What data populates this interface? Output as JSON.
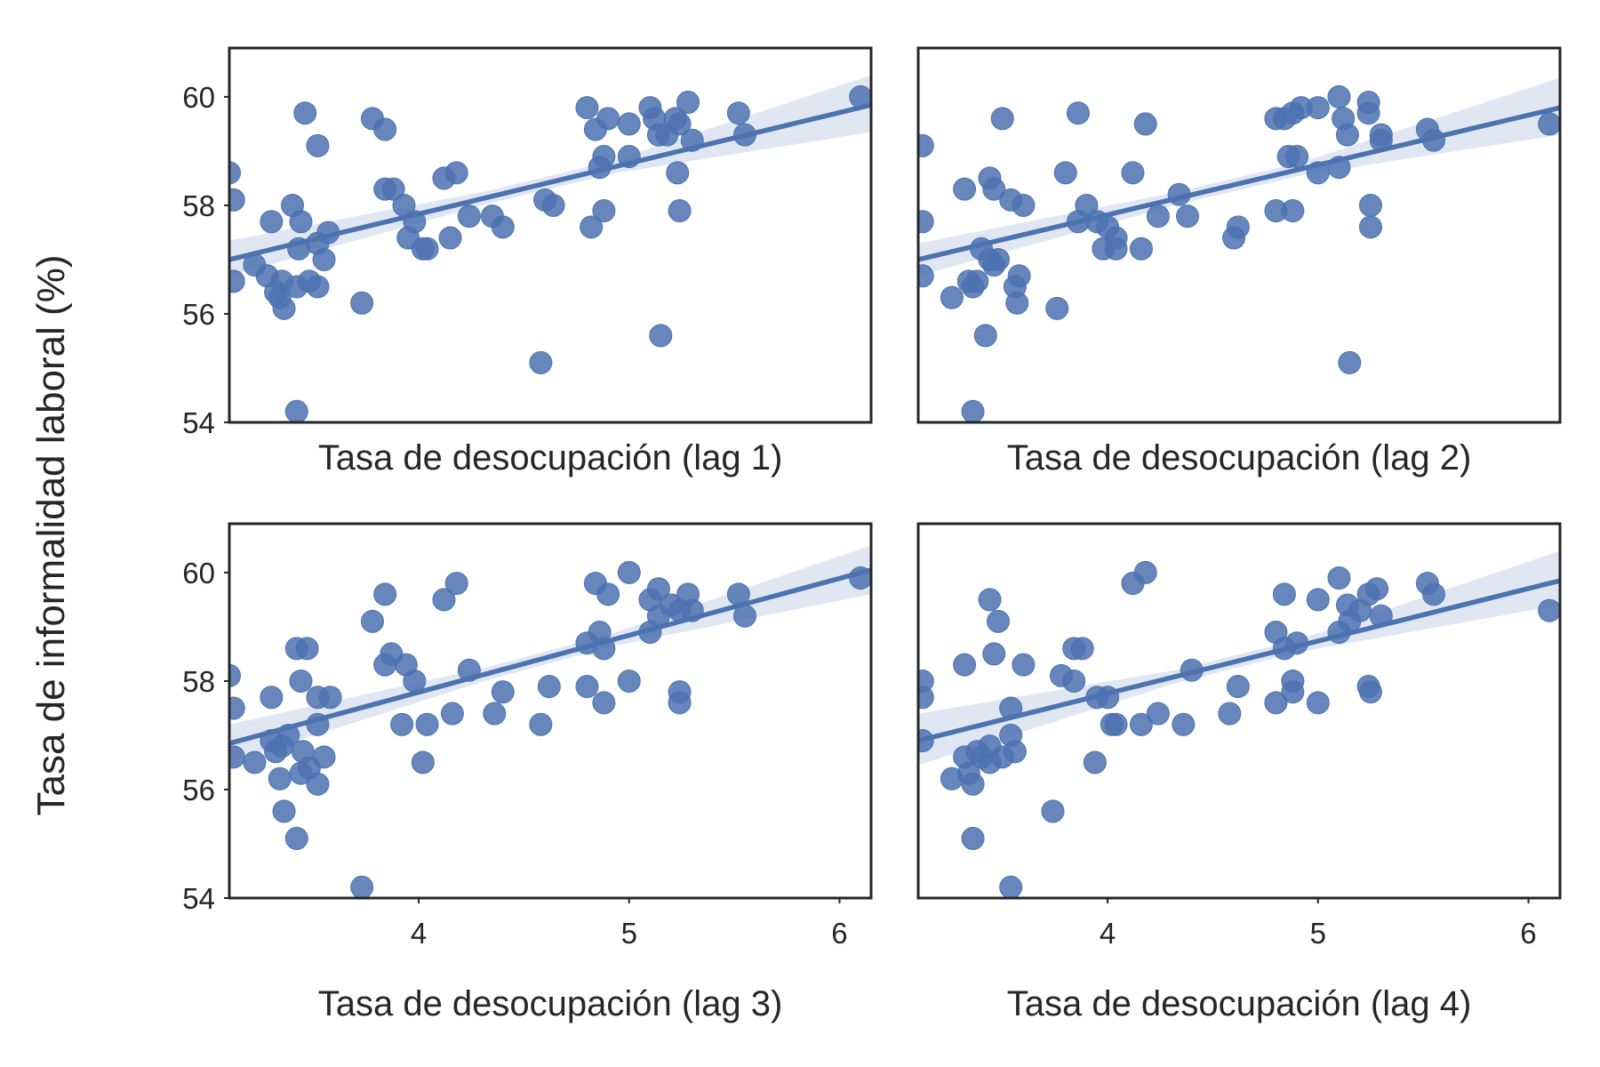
{
  "chart_data": {
    "type": "scatter",
    "ylabel": "Tasa de informalidad laboral (%)",
    "xlim": [
      3.1,
      6.15
    ],
    "ylim": [
      54,
      60.9
    ],
    "xticks": [
      "4",
      "5",
      "6"
    ],
    "yticks": [
      "54",
      "56",
      "58",
      "60"
    ],
    "grid": false,
    "color": "#4c72b0",
    "ci_color": "#dce3f0",
    "panels": [
      {
        "xlabel": "Tasa de desocupación (lag 1)",
        "regression": {
          "x": [
            3.1,
            6.15
          ],
          "y": [
            57.0,
            59.85
          ],
          "ci_lower_end": [
            56.7,
            59.35
          ],
          "ci_upper_end": [
            57.35,
            60.4
          ]
        },
        "points": [
          [
            3.1,
            58.6
          ],
          [
            3.12,
            58.1
          ],
          [
            3.12,
            56.6
          ],
          [
            3.22,
            56.9
          ],
          [
            3.28,
            56.7
          ],
          [
            3.3,
            57.7
          ],
          [
            3.32,
            56.4
          ],
          [
            3.34,
            56.3
          ],
          [
            3.35,
            56.6
          ],
          [
            3.36,
            56.1
          ],
          [
            3.4,
            58.0
          ],
          [
            3.42,
            54.2
          ],
          [
            3.42,
            56.5
          ],
          [
            3.43,
            57.2
          ],
          [
            3.44,
            57.7
          ],
          [
            3.46,
            59.7
          ],
          [
            3.48,
            56.6
          ],
          [
            3.52,
            59.1
          ],
          [
            3.52,
            56.5
          ],
          [
            3.52,
            57.3
          ],
          [
            3.55,
            57.0
          ],
          [
            3.57,
            57.5
          ],
          [
            3.73,
            56.2
          ],
          [
            3.78,
            59.6
          ],
          [
            3.84,
            59.4
          ],
          [
            3.84,
            58.3
          ],
          [
            3.88,
            58.3
          ],
          [
            3.93,
            58.0
          ],
          [
            3.95,
            57.4
          ],
          [
            3.98,
            57.7
          ],
          [
            4.02,
            57.2
          ],
          [
            4.04,
            57.2
          ],
          [
            4.12,
            58.5
          ],
          [
            4.15,
            57.4
          ],
          [
            4.18,
            58.6
          ],
          [
            4.24,
            57.8
          ],
          [
            4.35,
            57.8
          ],
          [
            4.4,
            57.6
          ],
          [
            4.58,
            55.1
          ],
          [
            4.6,
            58.1
          ],
          [
            4.64,
            58.0
          ],
          [
            4.8,
            59.8
          ],
          [
            4.82,
            57.6
          ],
          [
            4.84,
            59.4
          ],
          [
            4.86,
            58.7
          ],
          [
            4.88,
            57.9
          ],
          [
            4.88,
            58.9
          ],
          [
            4.9,
            59.6
          ],
          [
            5.0,
            58.9
          ],
          [
            5.0,
            59.5
          ],
          [
            5.1,
            59.8
          ],
          [
            5.12,
            59.6
          ],
          [
            5.14,
            59.3
          ],
          [
            5.15,
            55.6
          ],
          [
            5.18,
            59.3
          ],
          [
            5.22,
            59.6
          ],
          [
            5.24,
            59.5
          ],
          [
            5.23,
            58.6
          ],
          [
            5.24,
            57.9
          ],
          [
            5.28,
            59.9
          ],
          [
            5.3,
            59.2
          ],
          [
            5.52,
            59.7
          ],
          [
            5.55,
            59.3
          ],
          [
            6.1,
            60.0
          ]
        ]
      },
      {
        "xlabel": "Tasa de desocupación (lag 2)",
        "regression": {
          "x": [
            3.1,
            6.15
          ],
          "y": [
            57.0,
            59.8
          ],
          "ci_lower_end": [
            56.7,
            59.3
          ],
          "ci_upper_end": [
            57.3,
            60.35
          ]
        },
        "points": [
          [
            3.12,
            59.1
          ],
          [
            3.12,
            57.7
          ],
          [
            3.12,
            56.7
          ],
          [
            3.26,
            56.3
          ],
          [
            3.32,
            58.3
          ],
          [
            3.34,
            56.6
          ],
          [
            3.36,
            56.5
          ],
          [
            3.38,
            56.6
          ],
          [
            3.4,
            57.2
          ],
          [
            3.44,
            58.5
          ],
          [
            3.44,
            57.0
          ],
          [
            3.46,
            58.3
          ],
          [
            3.46,
            56.9
          ],
          [
            3.48,
            57.0
          ],
          [
            3.5,
            59.6
          ],
          [
            3.54,
            58.1
          ],
          [
            3.56,
            56.5
          ],
          [
            3.57,
            56.2
          ],
          [
            3.58,
            56.7
          ],
          [
            3.6,
            58.0
          ],
          [
            3.42,
            55.6
          ],
          [
            3.36,
            54.2
          ],
          [
            3.76,
            56.1
          ],
          [
            3.8,
            58.6
          ],
          [
            3.86,
            59.7
          ],
          [
            3.86,
            57.7
          ],
          [
            3.9,
            58.0
          ],
          [
            3.95,
            57.7
          ],
          [
            3.98,
            57.2
          ],
          [
            4.0,
            57.6
          ],
          [
            4.04,
            57.4
          ],
          [
            4.04,
            57.2
          ],
          [
            4.12,
            58.6
          ],
          [
            4.16,
            57.2
          ],
          [
            4.18,
            59.5
          ],
          [
            4.24,
            57.8
          ],
          [
            4.34,
            58.2
          ],
          [
            4.38,
            57.8
          ],
          [
            4.6,
            57.4
          ],
          [
            4.62,
            57.6
          ],
          [
            4.8,
            57.9
          ],
          [
            4.8,
            59.6
          ],
          [
            4.84,
            59.6
          ],
          [
            4.86,
            58.9
          ],
          [
            4.88,
            57.9
          ],
          [
            4.88,
            59.7
          ],
          [
            4.9,
            58.9
          ],
          [
            4.92,
            59.8
          ],
          [
            5.0,
            58.6
          ],
          [
            5.0,
            59.8
          ],
          [
            5.1,
            58.7
          ],
          [
            5.1,
            60.0
          ],
          [
            5.12,
            59.6
          ],
          [
            5.14,
            59.3
          ],
          [
            5.15,
            55.1
          ],
          [
            5.24,
            59.9
          ],
          [
            5.24,
            59.7
          ],
          [
            5.25,
            58.0
          ],
          [
            5.25,
            57.6
          ],
          [
            5.3,
            59.3
          ],
          [
            5.3,
            59.2
          ],
          [
            5.52,
            59.4
          ],
          [
            5.55,
            59.2
          ],
          [
            6.1,
            59.5
          ]
        ]
      },
      {
        "xlabel": "Tasa de desocupación (lag 3)",
        "regression": {
          "x": [
            3.1,
            6.15
          ],
          "y": [
            56.85,
            60.05
          ],
          "ci_lower_end": [
            56.5,
            59.6
          ],
          "ci_upper_end": [
            57.2,
            60.5
          ]
        },
        "points": [
          [
            3.1,
            58.1
          ],
          [
            3.12,
            57.5
          ],
          [
            3.12,
            56.6
          ],
          [
            3.22,
            56.5
          ],
          [
            3.3,
            57.7
          ],
          [
            3.3,
            56.9
          ],
          [
            3.32,
            56.7
          ],
          [
            3.34,
            56.2
          ],
          [
            3.35,
            56.8
          ],
          [
            3.36,
            55.6
          ],
          [
            3.38,
            57.0
          ],
          [
            3.42,
            58.6
          ],
          [
            3.42,
            55.1
          ],
          [
            3.44,
            58.0
          ],
          [
            3.44,
            56.3
          ],
          [
            3.45,
            56.7
          ],
          [
            3.47,
            58.6
          ],
          [
            3.48,
            56.4
          ],
          [
            3.52,
            57.7
          ],
          [
            3.52,
            57.2
          ],
          [
            3.52,
            56.1
          ],
          [
            3.55,
            56.6
          ],
          [
            3.58,
            57.7
          ],
          [
            3.73,
            54.2
          ],
          [
            3.78,
            59.1
          ],
          [
            3.84,
            59.6
          ],
          [
            3.84,
            58.3
          ],
          [
            3.87,
            58.5
          ],
          [
            3.92,
            57.2
          ],
          [
            3.94,
            58.3
          ],
          [
            3.98,
            58.0
          ],
          [
            4.02,
            56.5
          ],
          [
            4.04,
            57.2
          ],
          [
            4.12,
            59.5
          ],
          [
            4.16,
            57.4
          ],
          [
            4.18,
            59.8
          ],
          [
            4.24,
            58.2
          ],
          [
            4.36,
            57.4
          ],
          [
            4.4,
            57.8
          ],
          [
            4.58,
            57.2
          ],
          [
            4.62,
            57.9
          ],
          [
            4.8,
            58.7
          ],
          [
            4.8,
            57.9
          ],
          [
            4.84,
            59.8
          ],
          [
            4.86,
            58.9
          ],
          [
            4.88,
            58.6
          ],
          [
            4.88,
            57.6
          ],
          [
            4.9,
            59.6
          ],
          [
            5.0,
            60.0
          ],
          [
            5.0,
            58.0
          ],
          [
            5.1,
            59.5
          ],
          [
            5.1,
            58.9
          ],
          [
            5.14,
            59.7
          ],
          [
            5.14,
            59.2
          ],
          [
            5.2,
            59.4
          ],
          [
            5.24,
            59.3
          ],
          [
            5.24,
            57.8
          ],
          [
            5.24,
            57.6
          ],
          [
            5.28,
            59.6
          ],
          [
            5.3,
            59.3
          ],
          [
            5.52,
            59.6
          ],
          [
            5.55,
            59.2
          ],
          [
            6.1,
            59.9
          ]
        ]
      },
      {
        "xlabel": "Tasa de desocupación (lag 4)",
        "regression": {
          "x": [
            3.1,
            6.15
          ],
          "y": [
            56.9,
            59.85
          ],
          "ci_lower_end": [
            56.45,
            59.4
          ],
          "ci_upper_end": [
            57.4,
            60.4
          ]
        },
        "points": [
          [
            3.12,
            58.0
          ],
          [
            3.12,
            57.7
          ],
          [
            3.12,
            56.9
          ],
          [
            3.26,
            56.2
          ],
          [
            3.32,
            58.3
          ],
          [
            3.32,
            56.6
          ],
          [
            3.34,
            56.3
          ],
          [
            3.36,
            56.1
          ],
          [
            3.36,
            55.1
          ],
          [
            3.38,
            56.7
          ],
          [
            3.4,
            56.6
          ],
          [
            3.44,
            59.5
          ],
          [
            3.44,
            56.8
          ],
          [
            3.44,
            56.5
          ],
          [
            3.46,
            58.5
          ],
          [
            3.48,
            59.1
          ],
          [
            3.5,
            56.6
          ],
          [
            3.54,
            57.5
          ],
          [
            3.54,
            57.0
          ],
          [
            3.56,
            56.7
          ],
          [
            3.6,
            58.3
          ],
          [
            3.54,
            54.2
          ],
          [
            3.74,
            55.6
          ],
          [
            3.78,
            58.1
          ],
          [
            3.84,
            58.6
          ],
          [
            3.84,
            58.0
          ],
          [
            3.88,
            58.6
          ],
          [
            3.94,
            56.5
          ],
          [
            3.95,
            57.7
          ],
          [
            4.0,
            57.7
          ],
          [
            4.02,
            57.2
          ],
          [
            4.04,
            57.2
          ],
          [
            4.12,
            59.8
          ],
          [
            4.16,
            57.2
          ],
          [
            4.18,
            60.0
          ],
          [
            4.24,
            57.4
          ],
          [
            4.36,
            57.2
          ],
          [
            4.4,
            58.2
          ],
          [
            4.58,
            57.4
          ],
          [
            4.62,
            57.9
          ],
          [
            4.8,
            58.9
          ],
          [
            4.8,
            57.6
          ],
          [
            4.84,
            59.6
          ],
          [
            4.84,
            58.6
          ],
          [
            4.88,
            57.8
          ],
          [
            4.88,
            58.0
          ],
          [
            4.9,
            58.7
          ],
          [
            5.0,
            59.5
          ],
          [
            5.0,
            57.6
          ],
          [
            5.1,
            59.9
          ],
          [
            5.1,
            58.9
          ],
          [
            5.14,
            59.4
          ],
          [
            5.15,
            59.1
          ],
          [
            5.2,
            59.3
          ],
          [
            5.24,
            59.6
          ],
          [
            5.24,
            57.9
          ],
          [
            5.25,
            57.8
          ],
          [
            5.28,
            59.7
          ],
          [
            5.3,
            59.2
          ],
          [
            5.52,
            59.8
          ],
          [
            5.55,
            59.6
          ],
          [
            6.1,
            59.3
          ]
        ]
      }
    ]
  }
}
